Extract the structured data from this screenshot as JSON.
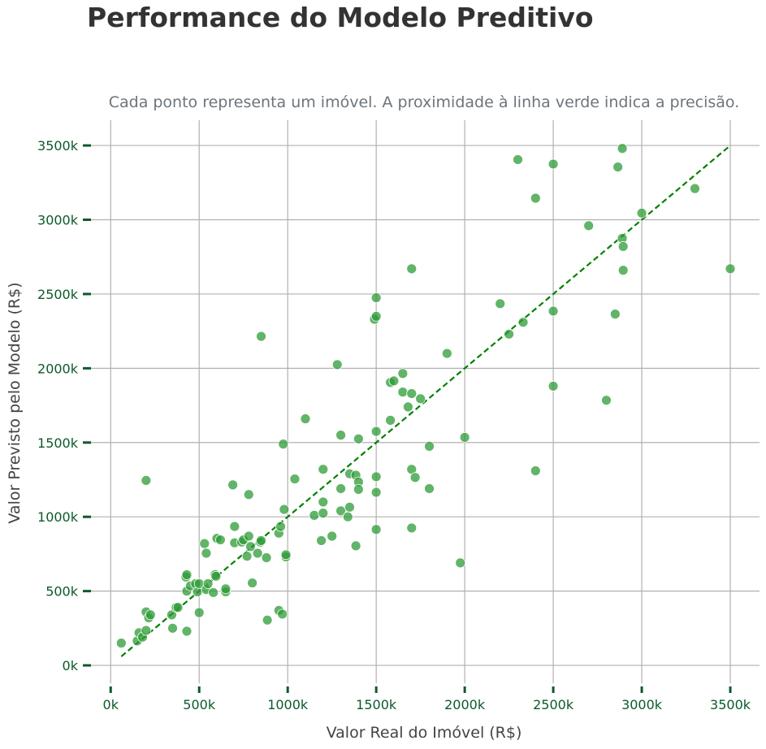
{
  "chart_data": {
    "type": "scatter",
    "title": "Performance do Modelo Preditivo",
    "subtitle": "Cada ponto representa um imóvel. A proximidade à linha verde indica a precisão.",
    "xlabel": "Valor Real do Imóvel (R$)",
    "ylabel": "Valor Previsto pelo Modelo (R$)",
    "xlim": [
      -125,
      3665
    ],
    "ylim": [
      -120,
      3670
    ],
    "x_ticks": [
      0,
      500,
      1000,
      1500,
      2000,
      2500,
      3000,
      3500
    ],
    "y_ticks": [
      0,
      500,
      1000,
      1500,
      2000,
      2500,
      3000,
      3500
    ],
    "x_tick_labels": [
      "0k",
      "500k",
      "1000k",
      "1500k",
      "2000k",
      "2500k",
      "3000k",
      "3500k"
    ],
    "y_tick_labels": [
      "0k",
      "500k",
      "1000k",
      "1500k",
      "2000k",
      "2500k",
      "3000k",
      "3500k"
    ],
    "grid": true,
    "reference_line": {
      "x": [
        60,
        3500
      ],
      "y": [
        60,
        3500
      ],
      "color": "#008000",
      "style": "dashed"
    },
    "point_color": "#2e9b36",
    "units": "R$ thousands",
    "points": [
      [
        60,
        150
      ],
      [
        150,
        165
      ],
      [
        160,
        220
      ],
      [
        180,
        190
      ],
      [
        200,
        360
      ],
      [
        200,
        235
      ],
      [
        215,
        320
      ],
      [
        225,
        340
      ],
      [
        200,
        1245
      ],
      [
        345,
        340
      ],
      [
        350,
        250
      ],
      [
        370,
        390
      ],
      [
        380,
        390
      ],
      [
        430,
        230
      ],
      [
        425,
        595
      ],
      [
        430,
        610
      ],
      [
        430,
        500
      ],
      [
        450,
        535
      ],
      [
        480,
        550
      ],
      [
        490,
        495
      ],
      [
        500,
        550
      ],
      [
        500,
        355
      ],
      [
        530,
        820
      ],
      [
        540,
        755
      ],
      [
        540,
        510
      ],
      [
        550,
        550
      ],
      [
        580,
        490
      ],
      [
        590,
        610
      ],
      [
        595,
        600
      ],
      [
        600,
        855
      ],
      [
        620,
        845
      ],
      [
        650,
        495
      ],
      [
        650,
        515
      ],
      [
        690,
        1215
      ],
      [
        700,
        825
      ],
      [
        700,
        935
      ],
      [
        740,
        830
      ],
      [
        750,
        845
      ],
      [
        770,
        735
      ],
      [
        780,
        870
      ],
      [
        780,
        1150
      ],
      [
        790,
        800
      ],
      [
        800,
        555
      ],
      [
        830,
        755
      ],
      [
        845,
        830
      ],
      [
        850,
        840
      ],
      [
        850,
        2215
      ],
      [
        880,
        725
      ],
      [
        885,
        305
      ],
      [
        950,
        890
      ],
      [
        950,
        370
      ],
      [
        960,
        935
      ],
      [
        970,
        345
      ],
      [
        975,
        1490
      ],
      [
        980,
        1050
      ],
      [
        990,
        730
      ],
      [
        990,
        745
      ],
      [
        1040,
        1255
      ],
      [
        1100,
        1660
      ],
      [
        1150,
        1010
      ],
      [
        1190,
        840
      ],
      [
        1200,
        1025
      ],
      [
        1200,
        1100
      ],
      [
        1200,
        1320
      ],
      [
        1250,
        870
      ],
      [
        1280,
        2025
      ],
      [
        1300,
        1550
      ],
      [
        1300,
        1040
      ],
      [
        1300,
        1190
      ],
      [
        1340,
        1000
      ],
      [
        1350,
        1065
      ],
      [
        1350,
        1290
      ],
      [
        1385,
        1280
      ],
      [
        1385,
        805
      ],
      [
        1400,
        1525
      ],
      [
        1400,
        1235
      ],
      [
        1400,
        1185
      ],
      [
        1490,
        2330
      ],
      [
        1500,
        2475
      ],
      [
        1500,
        2350
      ],
      [
        1500,
        1575
      ],
      [
        1500,
        1270
      ],
      [
        1500,
        915
      ],
      [
        1500,
        1165
      ],
      [
        1580,
        1650
      ],
      [
        1580,
        1905
      ],
      [
        1600,
        1915
      ],
      [
        1650,
        1965
      ],
      [
        1650,
        1840
      ],
      [
        1680,
        1740
      ],
      [
        1700,
        1830
      ],
      [
        1700,
        2670
      ],
      [
        1700,
        1320
      ],
      [
        1700,
        925
      ],
      [
        1720,
        1265
      ],
      [
        1750,
        1795
      ],
      [
        1800,
        1190
      ],
      [
        1800,
        1475
      ],
      [
        1900,
        2100
      ],
      [
        1975,
        690
      ],
      [
        2000,
        1535
      ],
      [
        2200,
        2435
      ],
      [
        2250,
        2230
      ],
      [
        2300,
        3405
      ],
      [
        2330,
        2310
      ],
      [
        2400,
        3145
      ],
      [
        2400,
        1310
      ],
      [
        2500,
        3375
      ],
      [
        2500,
        2385
      ],
      [
        2500,
        1880
      ],
      [
        2700,
        2960
      ],
      [
        2800,
        1785
      ],
      [
        2850,
        2365
      ],
      [
        2865,
        3355
      ],
      [
        2890,
        3480
      ],
      [
        2890,
        2875
      ],
      [
        2895,
        2820
      ],
      [
        2895,
        2660
      ],
      [
        3000,
        3045
      ],
      [
        3300,
        3210
      ],
      [
        3500,
        2670
      ]
    ]
  }
}
